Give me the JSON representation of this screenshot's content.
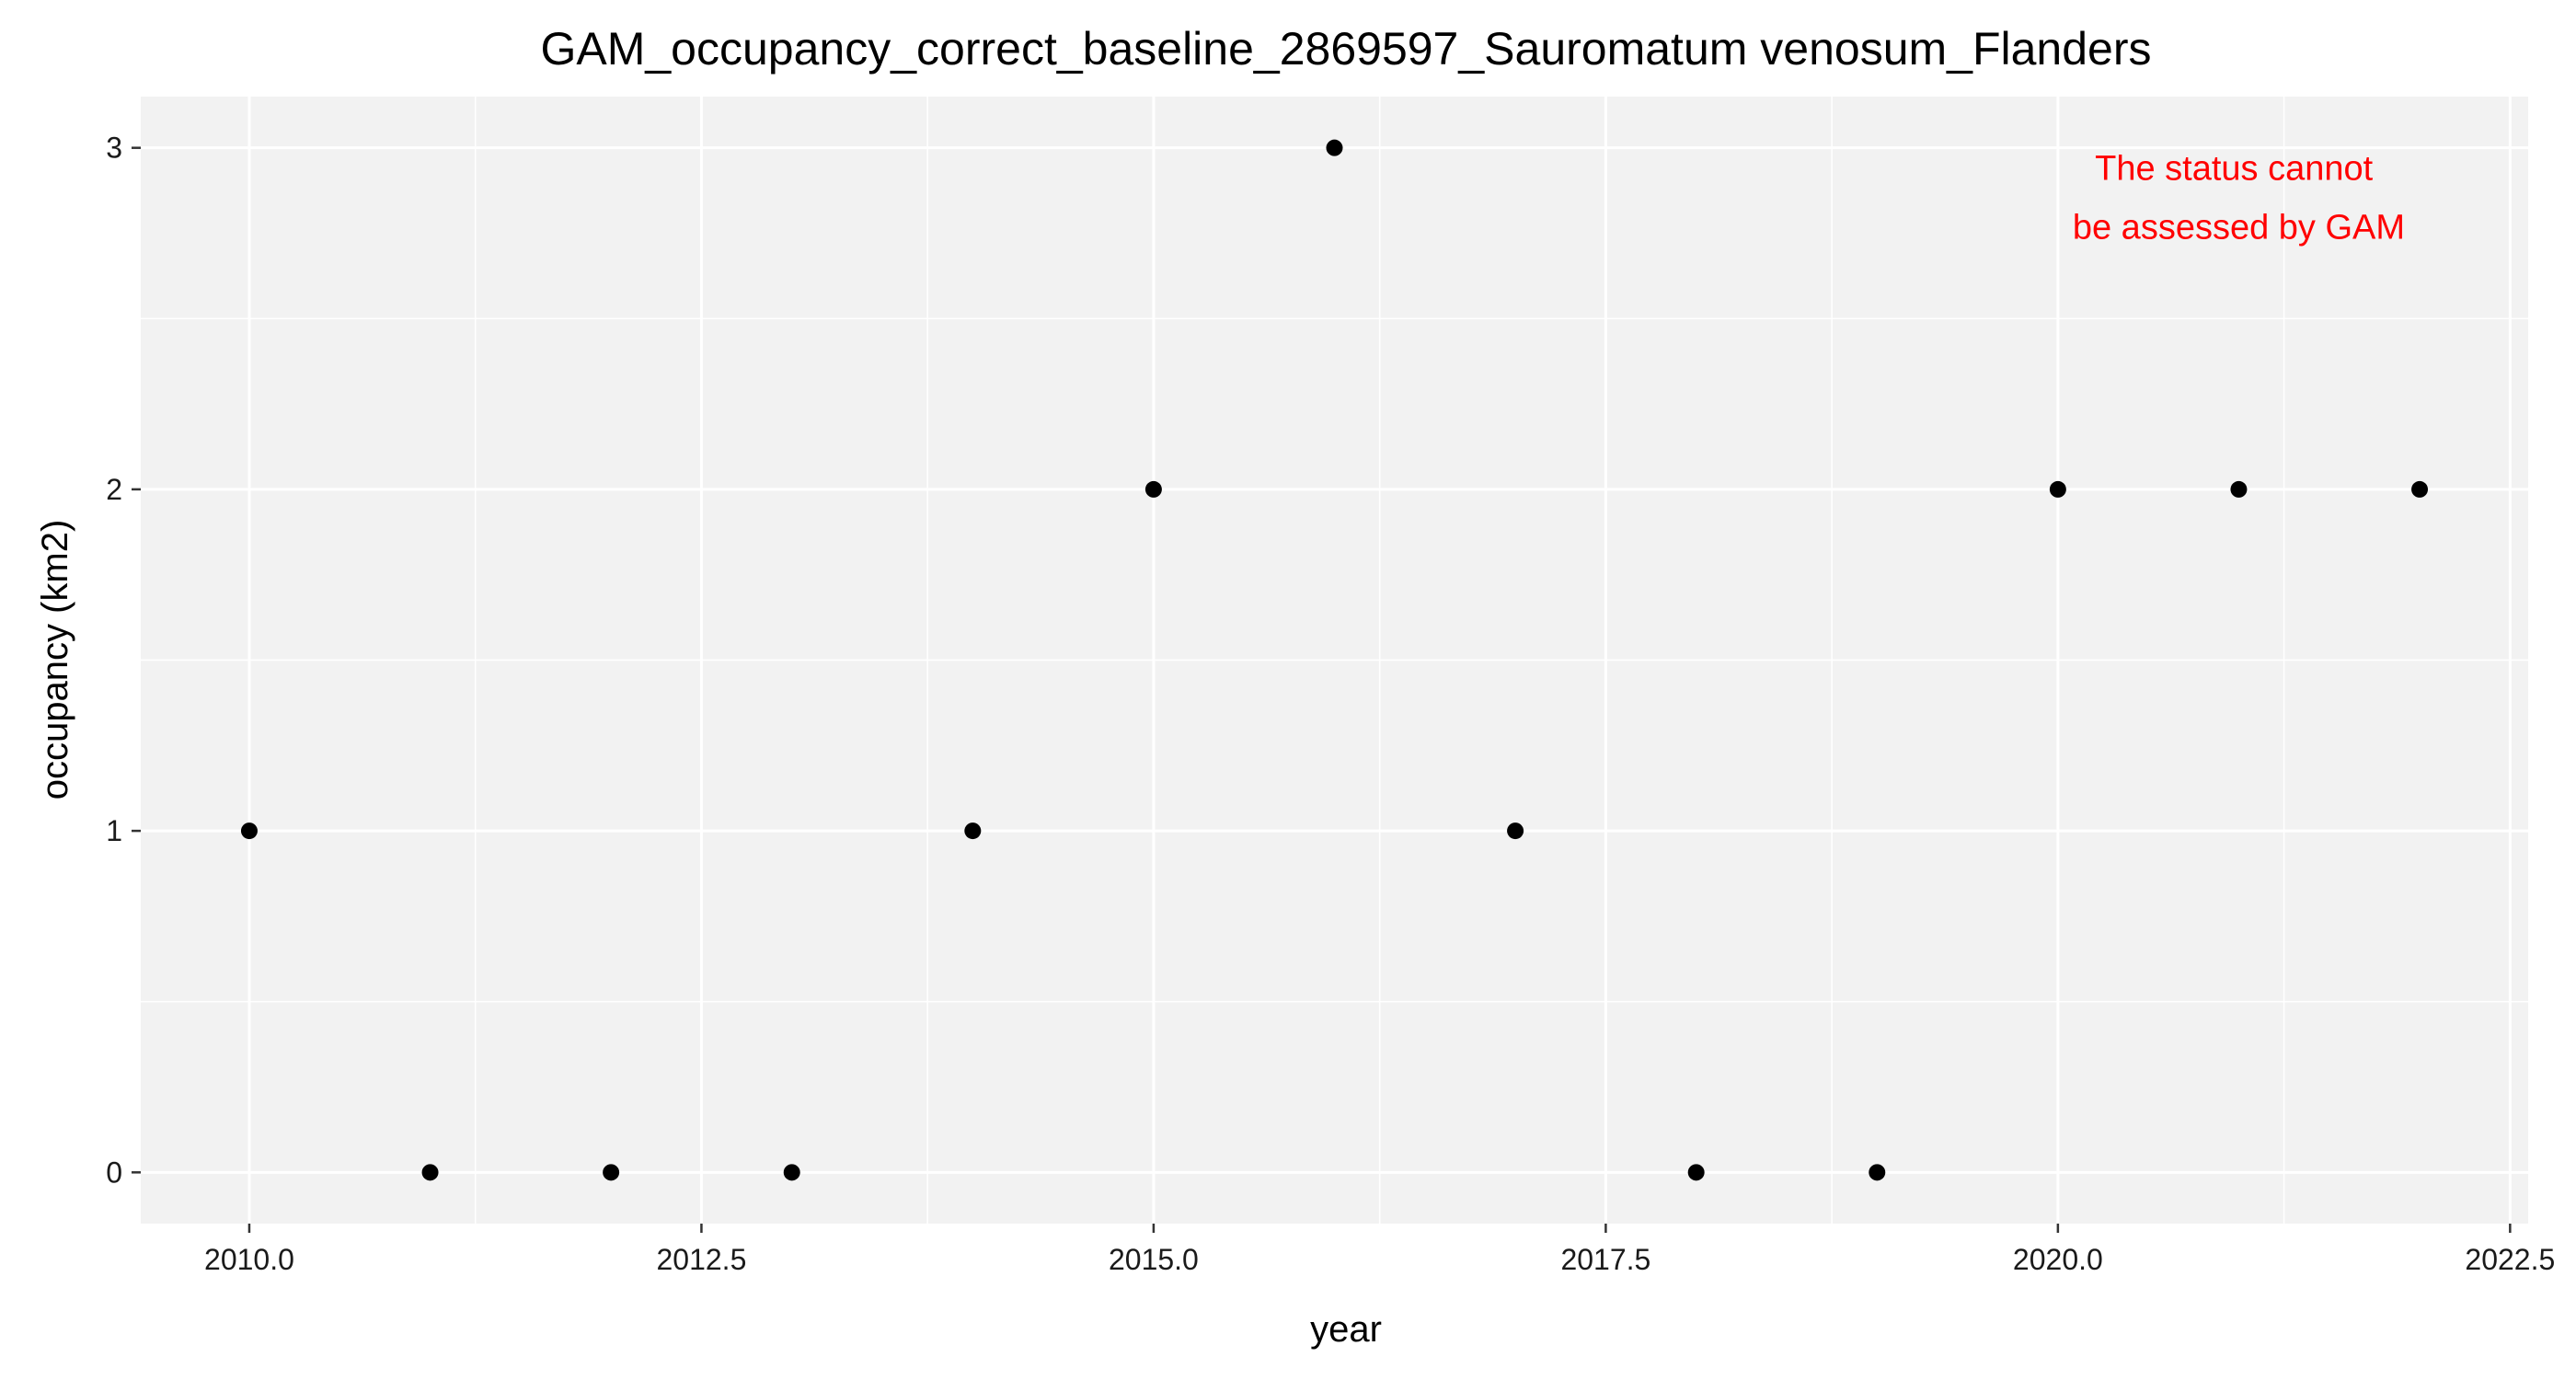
{
  "chart_data": {
    "type": "scatter",
    "title": "GAM_occupancy_correct_baseline_2869597_Sauromatum venosum_Flanders",
    "xlabel": "year",
    "ylabel": "occupancy (km2)",
    "x": [
      2010,
      2011,
      2012,
      2013,
      2014,
      2015,
      2016,
      2017,
      2018,
      2019,
      2020,
      2021,
      2022
    ],
    "y": [
      1,
      0,
      0,
      0,
      1,
      2,
      3,
      1,
      0,
      0,
      2,
      2,
      2
    ],
    "xlim": [
      2009.4,
      2022.6
    ],
    "ylim": [
      -0.15,
      3.15
    ],
    "x_ticks": [
      2010.0,
      2012.5,
      2015.0,
      2017.5,
      2020.0,
      2022.5
    ],
    "x_tick_labels": [
      "2010.0",
      "2012.5",
      "2015.0",
      "2017.5",
      "2020.0",
      "2022.5"
    ],
    "y_ticks": [
      0,
      1,
      2,
      3
    ],
    "y_tick_labels": [
      "0",
      "1",
      "2",
      "3"
    ],
    "grid": true,
    "legend": "none",
    "annotation": {
      "lines": [
        "The status cannot",
        "be assessed by GAM"
      ],
      "x": 2021,
      "y": 2.85,
      "color": "#ff0000"
    },
    "colors": {
      "panel": "#f2f2f2",
      "grid": "#ffffff",
      "point": "#000000"
    }
  }
}
